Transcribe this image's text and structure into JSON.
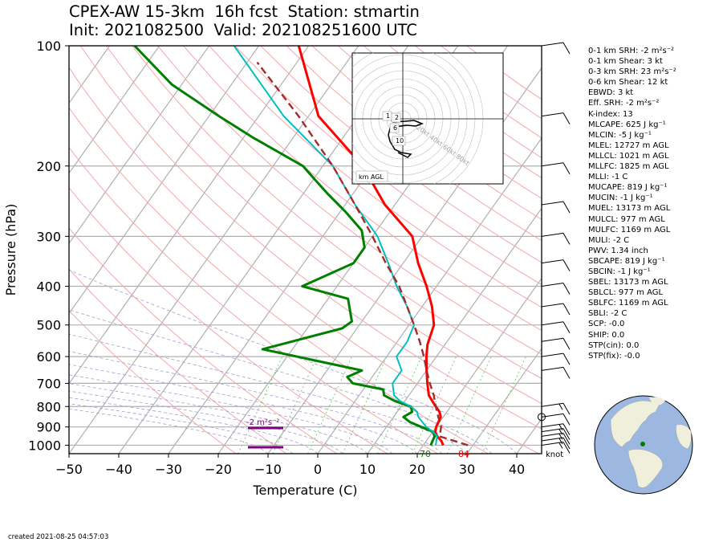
{
  "title": {
    "line1": "CPEX-AW 15-3km  16h fcst  Station: stmartin",
    "line2": "Init: 2021082500  Valid: 202108251600 UTC"
  },
  "chart_data": {
    "type": "skew-t",
    "xlabel": "Temperature (C)",
    "ylabel": "Pressure (hPa)",
    "xlim": [
      -50,
      45
    ],
    "ylim": [
      1050,
      100
    ],
    "x_ticks": [
      "−50",
      "−40",
      "−30",
      "−20",
      "−10",
      "0",
      "10",
      "20",
      "30",
      "40"
    ],
    "y_ticks": [
      "100",
      "200",
      "300",
      "400",
      "500",
      "600",
      "700",
      "800",
      "900",
      "1000"
    ],
    "grid": true,
    "series": [
      {
        "key": "temperature",
        "color": "#ff0000",
        "points": [
          [
            24,
            1000
          ],
          [
            23,
            975
          ],
          [
            21.5,
            950
          ],
          [
            20.5,
            925
          ],
          [
            20,
            900
          ],
          [
            19.5,
            850
          ],
          [
            18.5,
            825
          ],
          [
            17,
            800
          ],
          [
            15.5,
            775
          ],
          [
            14,
            750
          ],
          [
            12,
            700
          ],
          [
            10,
            650
          ],
          [
            8,
            600
          ],
          [
            6.5,
            560
          ],
          [
            5,
            500
          ],
          [
            2,
            450
          ],
          [
            -2,
            400
          ],
          [
            -7,
            350
          ],
          [
            -12,
            300
          ],
          [
            -22,
            250
          ],
          [
            -32,
            200
          ],
          [
            -48,
            150
          ],
          [
            -62,
            100
          ]
        ]
      },
      {
        "key": "dewpoint",
        "color": "#008000",
        "points": [
          [
            21.5,
            1000
          ],
          [
            21,
            950
          ],
          [
            20,
            925
          ],
          [
            17,
            900
          ],
          [
            14,
            875
          ],
          [
            12,
            850
          ],
          [
            13,
            825
          ],
          [
            12,
            800
          ],
          [
            8,
            775
          ],
          [
            5,
            750
          ],
          [
            4,
            725
          ],
          [
            -3,
            700
          ],
          [
            -5,
            675
          ],
          [
            -3,
            650
          ],
          [
            -26,
            575
          ],
          [
            -13,
            510
          ],
          [
            -12,
            490
          ],
          [
            -16,
            430
          ],
          [
            -27,
            400
          ],
          [
            -20,
            350
          ],
          [
            -20,
            320
          ],
          [
            -23,
            290
          ],
          [
            -29,
            260
          ],
          [
            -35,
            235
          ],
          [
            -40,
            215
          ],
          [
            -44,
            200
          ],
          [
            -58,
            170
          ],
          [
            -68,
            150
          ],
          [
            -82,
            125
          ],
          [
            -95,
            100
          ]
        ]
      },
      {
        "key": "wetbulb",
        "color": "#00bfbf",
        "points": [
          [
            22.5,
            1000
          ],
          [
            21.5,
            950
          ],
          [
            20,
            925
          ],
          [
            18,
            900
          ],
          [
            15,
            850
          ],
          [
            14,
            825
          ],
          [
            12,
            800
          ],
          [
            9,
            775
          ],
          [
            7,
            750
          ],
          [
            5,
            700
          ],
          [
            5,
            650
          ],
          [
            2,
            600
          ],
          [
            2,
            550
          ],
          [
            1,
            500
          ],
          [
            -3,
            450
          ],
          [
            -8,
            400
          ],
          [
            -13,
            350
          ],
          [
            -19,
            300
          ],
          [
            -28,
            250
          ],
          [
            -38,
            200
          ],
          [
            -55,
            150
          ],
          [
            -75,
            100
          ]
        ]
      },
      {
        "key": "parcel",
        "color": "#a52a2a",
        "dashed": true,
        "points": [
          [
            29,
            1000
          ],
          [
            22,
            950
          ],
          [
            21,
            900
          ],
          [
            19,
            850
          ],
          [
            17,
            800
          ],
          [
            15,
            750
          ],
          [
            12.5,
            700
          ],
          [
            10,
            650
          ],
          [
            7.5,
            600
          ],
          [
            4.5,
            550
          ],
          [
            1,
            500
          ],
          [
            -3,
            450
          ],
          [
            -7.5,
            400
          ],
          [
            -13.5,
            350
          ],
          [
            -20,
            300
          ],
          [
            -28,
            250
          ],
          [
            -38,
            200
          ],
          [
            -52,
            150
          ],
          [
            -68,
            110
          ]
        ]
      }
    ],
    "surface_labels": {
      "dewpoint_f": "70",
      "temperature_f": "84"
    },
    "srh_bar_label": "-2 m²s⁻²",
    "barb_units": "knot",
    "wind_barbs": [
      [
        1000,
        90,
        15
      ],
      [
        975,
        90,
        15
      ],
      [
        950,
        90,
        15
      ],
      [
        925,
        90,
        15
      ],
      [
        900,
        90,
        15
      ],
      [
        850,
        90,
        10
      ],
      [
        800,
        90,
        15
      ],
      [
        650,
        90,
        10
      ],
      [
        600,
        90,
        10
      ],
      [
        550,
        90,
        10
      ],
      [
        500,
        90,
        10
      ],
      [
        450,
        90,
        10
      ],
      [
        400,
        90,
        10
      ],
      [
        350,
        90,
        10
      ],
      [
        300,
        90,
        10
      ],
      [
        250,
        90,
        10
      ],
      [
        200,
        90,
        10
      ],
      [
        150,
        90,
        10
      ],
      [
        100,
        90,
        10
      ]
    ],
    "hodograph": {
      "ring_labels": [
        "20kt",
        "40kt",
        "60kt",
        "80kt"
      ],
      "height_labels": [
        "1",
        "2",
        "6",
        "10"
      ],
      "legend": "km AGL"
    }
  },
  "stats": [
    "0-1 km SRH: -2 m²s⁻²",
    "0-1 km Shear: 3 kt",
    "0-3 km SRH: 23 m²s⁻²",
    "0-6 km Shear: 12 kt",
    "EBWD: 3 kt",
    "Eff. SRH: -2 m²s⁻²",
    "K-index: 13",
    "MLCAPE: 625 J kg⁻¹",
    "MLCIN: -5 J kg⁻¹",
    "MLEL: 12727 m AGL",
    "MLLCL: 1021 m AGL",
    "MLLFC: 1825 m AGL",
    "MLLI: -1 C",
    "MUCAPE: 819 J kg⁻¹",
    "MUCIN: -1 J kg⁻¹",
    "MUEL: 13173 m AGL",
    "MULCL: 977 m AGL",
    "MULFC: 1169 m AGL",
    "MULI: -2 C",
    "PWV: 1.34 inch",
    "SBCAPE: 819 J kg⁻¹",
    "SBCIN: -1 J kg⁻¹",
    "SBEL: 13173 m AGL",
    "SBLCL: 977 m AGL",
    "SBLFC: 1169 m AGL",
    "SBLI: -2 C",
    "SCP: -0.0",
    "SHIP: 0.0",
    "STP(cin): 0.0",
    "STP(fix): -0.0"
  ],
  "created": "created 2021-08-25 04:57:03",
  "colors": {
    "temperature": "#ff0000",
    "dewpoint": "#008000",
    "wetbulb": "#00bfbf",
    "parcel": "#a52a2a",
    "srh_bar": "#800080",
    "ocean": "#9db8e0",
    "land": "#efefdc"
  }
}
